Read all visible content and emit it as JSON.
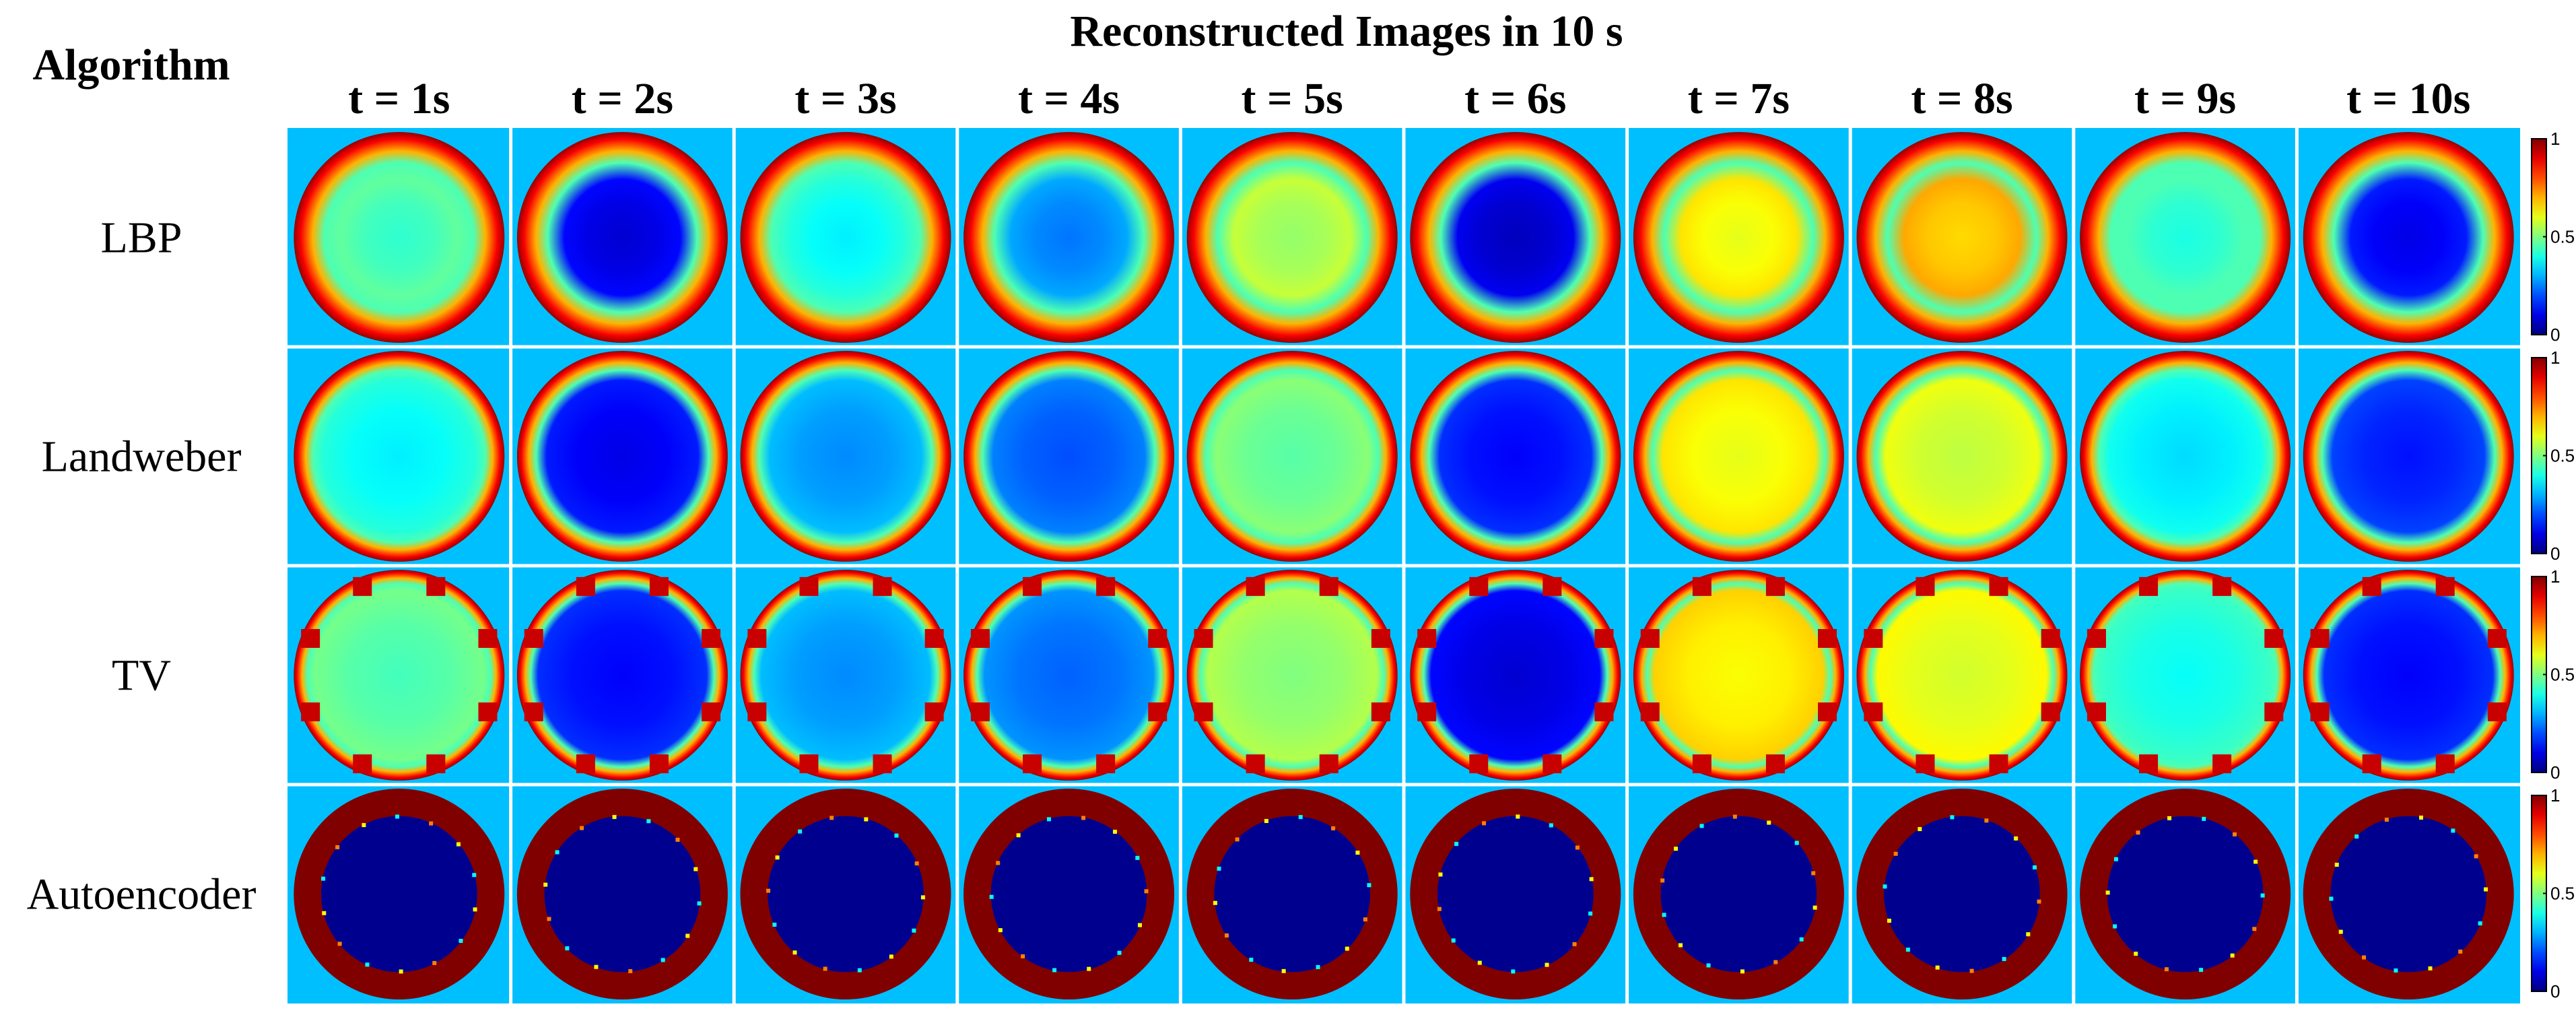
{
  "figure": {
    "title": "Reconstructed Images in 10 s",
    "row_header": "Algorithm",
    "columns": [
      "t = 1s",
      "t = 2s",
      "t = 3s",
      "t = 4s",
      "t = 5s",
      "t = 6s",
      "t = 7s",
      "t = 8s",
      "t = 9s",
      "t = 10s"
    ],
    "rows": [
      {
        "label": "LBP",
        "center_levels": [
          0.42,
          0.08,
          0.36,
          0.24,
          0.52,
          0.06,
          0.6,
          0.66,
          0.4,
          0.1
        ]
      },
      {
        "label": "Landweber",
        "center_levels": [
          0.36,
          0.1,
          0.26,
          0.2,
          0.46,
          0.12,
          0.6,
          0.56,
          0.34,
          0.14
        ]
      },
      {
        "label": "TV",
        "center_levels": [
          0.44,
          0.12,
          0.26,
          0.22,
          0.5,
          0.08,
          0.62,
          0.58,
          0.38,
          0.12
        ]
      },
      {
        "label": "Autoencoder",
        "center_levels": [
          0.0,
          0.0,
          0.0,
          0.0,
          0.0,
          0.0,
          0.0,
          0.0,
          0.0,
          0.0
        ]
      }
    ],
    "colorbar": {
      "colormap": "jet",
      "ticks": [
        "0",
        "0.5",
        "1"
      ],
      "range": [
        0,
        1
      ]
    },
    "colors": {
      "background_cell": "#00BFFF",
      "grid_line": "#ffffff"
    }
  }
}
